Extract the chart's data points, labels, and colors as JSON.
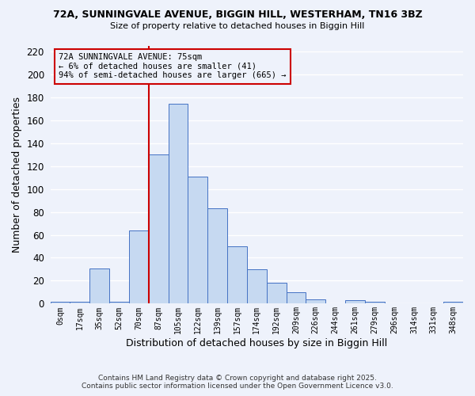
{
  "title1": "72A, SUNNINGVALE AVENUE, BIGGIN HILL, WESTERHAM, TN16 3BZ",
  "title2": "Size of property relative to detached houses in Biggin Hill",
  "xlabel": "Distribution of detached houses by size in Biggin Hill",
  "ylabel": "Number of detached properties",
  "bar_labels": [
    "0sqm",
    "17sqm",
    "35sqm",
    "52sqm",
    "70sqm",
    "87sqm",
    "105sqm",
    "122sqm",
    "139sqm",
    "157sqm",
    "174sqm",
    "192sqm",
    "209sqm",
    "226sqm",
    "244sqm",
    "261sqm",
    "279sqm",
    "296sqm",
    "314sqm",
    "331sqm",
    "348sqm"
  ],
  "bar_heights": [
    2,
    2,
    31,
    2,
    64,
    130,
    174,
    111,
    83,
    50,
    30,
    18,
    10,
    4,
    0,
    3,
    2,
    0,
    0,
    0,
    2
  ],
  "bar_color": "#c6d9f1",
  "bar_edge_color": "#4472c4",
  "ylim": [
    0,
    225
  ],
  "yticks": [
    0,
    20,
    40,
    60,
    80,
    100,
    120,
    140,
    160,
    180,
    200,
    220
  ],
  "vline_color": "#cc0000",
  "annotation_line1": "72A SUNNINGVALE AVENUE: 75sqm",
  "annotation_line2": "← 6% of detached houses are smaller (41)",
  "annotation_line3": "94% of semi-detached houses are larger (665) →",
  "annotation_box_color": "#cc0000",
  "footer1": "Contains HM Land Registry data © Crown copyright and database right 2025.",
  "footer2": "Contains public sector information licensed under the Open Government Licence v3.0.",
  "bg_color": "#eef2fb",
  "grid_color": "#ffffff"
}
